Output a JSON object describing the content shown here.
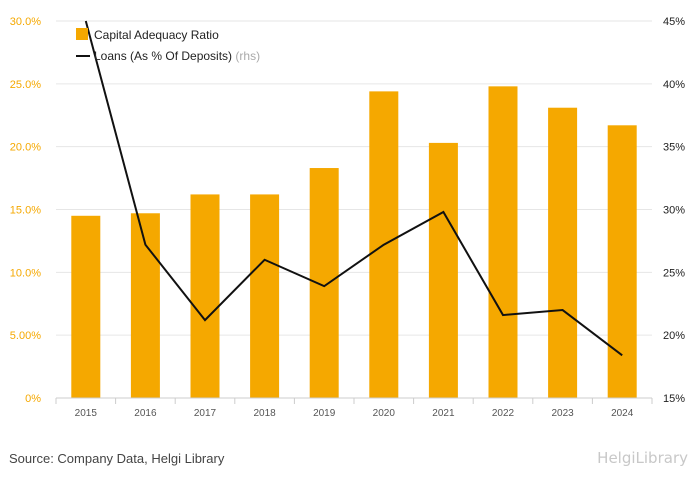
{
  "chart_data": {
    "type": "bar+line",
    "categories": [
      "2015",
      "2016",
      "2017",
      "2018",
      "2019",
      "2020",
      "2021",
      "2022",
      "2023",
      "2024"
    ],
    "series": [
      {
        "name": "Capital Adequacy Ratio",
        "type": "bar",
        "axis": "left",
        "color": "#f5a800",
        "values": [
          14.5,
          14.7,
          16.2,
          16.2,
          18.3,
          24.4,
          20.3,
          24.8,
          23.1,
          21.7
        ]
      },
      {
        "name": "Loans (As % Of Deposits)",
        "name_suffix": "(rhs)",
        "type": "line",
        "axis": "right",
        "color": "#111111",
        "values": [
          45.0,
          27.2,
          21.2,
          26.0,
          23.9,
          27.2,
          29.8,
          21.6,
          22.0,
          18.4
        ]
      }
    ],
    "left_axis": {
      "min": 0,
      "max": 30,
      "ticks": [
        0,
        5,
        10,
        15,
        20,
        25,
        30
      ],
      "tick_labels": [
        "0%",
        "5.00%",
        "10.0%",
        "15.0%",
        "20.0%",
        "25.0%",
        "30.0%"
      ],
      "color": "#f5a800"
    },
    "right_axis": {
      "min": 15,
      "max": 45,
      "ticks": [
        15,
        20,
        25,
        30,
        35,
        40,
        45
      ],
      "tick_labels": [
        "15%",
        "20%",
        "25%",
        "30%",
        "35%",
        "40%",
        "45%"
      ]
    },
    "grid": "horizontal",
    "legend_position": "top-left"
  },
  "footer": {
    "source": "Source: Company Data, Helgi Library",
    "logo": "HelgiLibrary"
  }
}
